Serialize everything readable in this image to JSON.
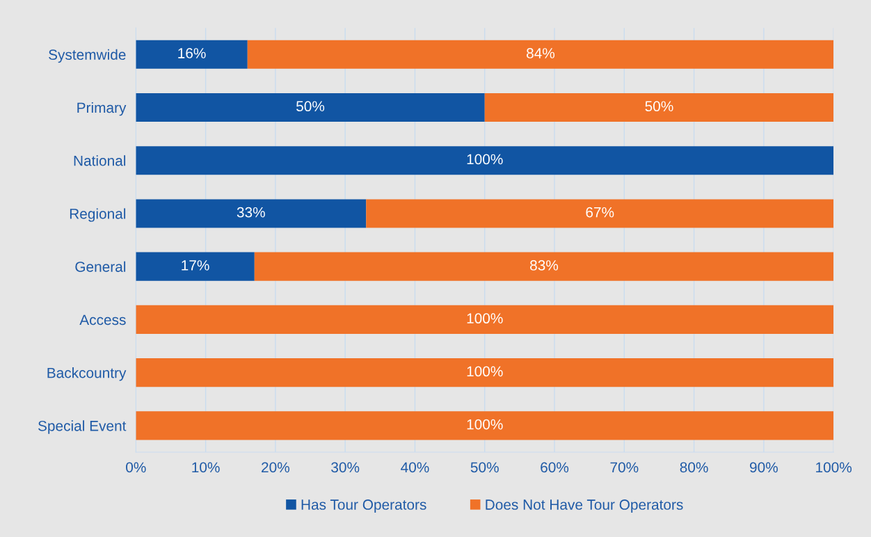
{
  "chart_data": {
    "type": "bar",
    "orientation": "horizontal",
    "stacked": true,
    "categories": [
      "Systemwide",
      "Primary",
      "National",
      "Regional",
      "General",
      "Access",
      "Backcountry",
      "Special Event"
    ],
    "series": [
      {
        "name": "Has Tour Operators",
        "color": "#1155a3",
        "values": [
          16,
          50,
          100,
          33,
          17,
          0,
          0,
          0
        ],
        "value_labels": [
          "16%",
          "50%",
          "100%",
          "33%",
          "17%",
          null,
          null,
          null
        ]
      },
      {
        "name": "Does Not Have Tour Operators",
        "color": "#f07228",
        "values": [
          84,
          50,
          0,
          67,
          83,
          100,
          100,
          100
        ],
        "value_labels": [
          "84%",
          "50%",
          null,
          "67%",
          "83%",
          "100%",
          "100%",
          "100%"
        ]
      }
    ],
    "xlim": [
      0,
      100
    ],
    "xticks": [
      {
        "value": 0,
        "label": "0%"
      },
      {
        "value": 10,
        "label": "10%"
      },
      {
        "value": 20,
        "label": "20%"
      },
      {
        "value": 30,
        "label": "30%"
      },
      {
        "value": 40,
        "label": "40%"
      },
      {
        "value": 50,
        "label": "50%"
      },
      {
        "value": 60,
        "label": "60%"
      },
      {
        "value": 70,
        "label": "70%"
      },
      {
        "value": 80,
        "label": "80%"
      },
      {
        "value": 90,
        "label": "90%"
      },
      {
        "value": 100,
        "label": "100%"
      }
    ],
    "grid": "x",
    "legend": "bottom"
  }
}
